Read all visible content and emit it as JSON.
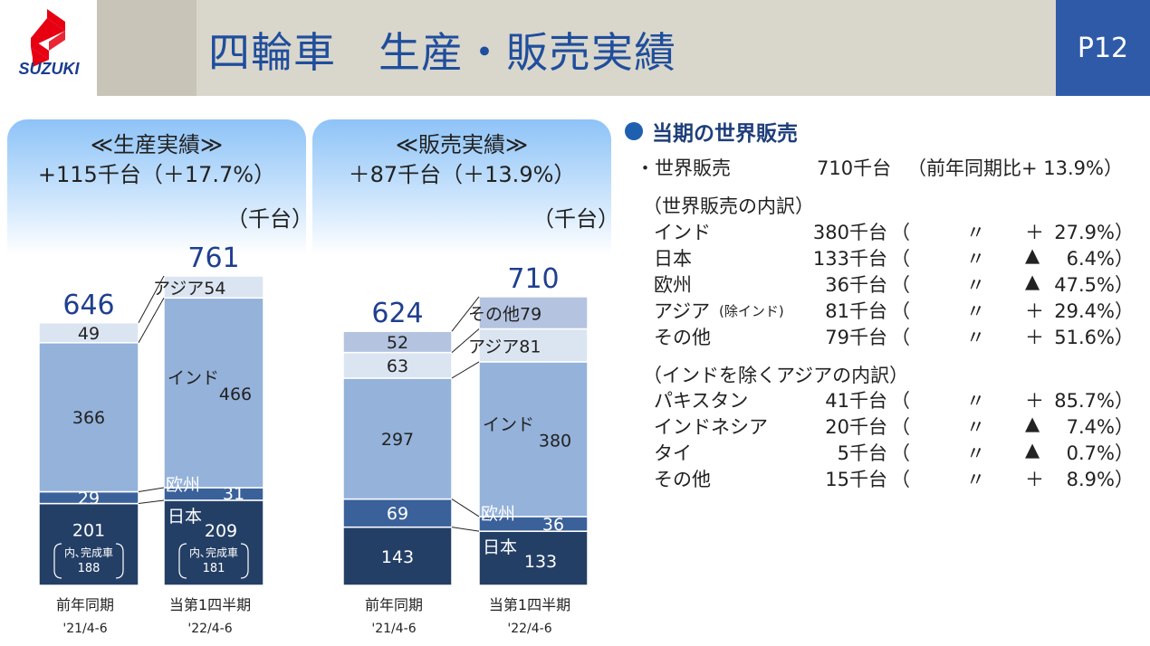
{
  "header": {
    "logo_text": "SUZUKI",
    "title": "四輪車　生産・販売実績",
    "page": "P12"
  },
  "colors": {
    "japan": "#243f65",
    "europe": "#3a619a",
    "india": "#94b2da",
    "asia": "#dbe5f2",
    "other": "#b4c3e0",
    "title_blue": "#1f4e9c",
    "total_blue": "#1f3f8f"
  },
  "production": {
    "heading": "≪生産実績≫",
    "change": "+115千台（＋17.7%）",
    "unit": "（千台）"
  },
  "sales": {
    "heading": "≪販売実績≫",
    "change": "＋87千台（＋13.9%）",
    "unit": "（千台）"
  },
  "chart_data": [
    {
      "type": "bar",
      "stacked": true,
      "title": "≪生産実績≫",
      "categories": [
        "前年同期",
        "当第1四半期"
      ],
      "category_sublabels": [
        "'21/4-6",
        "'22/4-6"
      ],
      "series": [
        {
          "name": "日本",
          "values": [
            201,
            209
          ]
        },
        {
          "name": "欧州",
          "values": [
            29,
            31
          ]
        },
        {
          "name": "インド",
          "values": [
            366,
            466
          ]
        },
        {
          "name": "アジア",
          "values": [
            49,
            54
          ]
        }
      ],
      "totals": [
        646,
        761
      ],
      "annotations": [
        {
          "label": "内､完成車",
          "values": [
            188,
            181
          ]
        }
      ],
      "ylabel": "（千台）"
    },
    {
      "type": "bar",
      "stacked": true,
      "title": "≪販売実績≫",
      "categories": [
        "前年同期",
        "当第1四半期"
      ],
      "category_sublabels": [
        "'21/4-6",
        "'22/4-6"
      ],
      "series": [
        {
          "name": "日本",
          "values": [
            143,
            133
          ]
        },
        {
          "name": "欧州",
          "values": [
            69,
            36
          ]
        },
        {
          "name": "インド",
          "values": [
            297,
            380
          ]
        },
        {
          "name": "アジア",
          "values": [
            63,
            81
          ]
        },
        {
          "name": "その他",
          "values": [
            52,
            79
          ]
        }
      ],
      "totals": [
        624,
        710
      ],
      "ylabel": "（千台）"
    }
  ],
  "world_sales": {
    "section_title": "当期の世界販売",
    "total": {
      "label": "・世界販売",
      "value": "710千台",
      "note": "（前年同期比+  13.9%）"
    },
    "breakdown_title": "（世界販売の内訳）",
    "breakdown": [
      {
        "name": "インド",
        "sub": "",
        "value": "380千台",
        "open": "（",
        "ditto": "〃",
        "mark": "＋",
        "pct": "27.9%）"
      },
      {
        "name": "日本",
        "sub": "",
        "value": "133千台",
        "open": "（",
        "ditto": "〃",
        "mark": "▲",
        "pct": "6.4%）"
      },
      {
        "name": "欧州",
        "sub": "",
        "value": "36千台",
        "open": "（",
        "ditto": "〃",
        "mark": "▲",
        "pct": "47.5%）"
      },
      {
        "name": "アジア",
        "sub": "(除インド)",
        "value": "81千台",
        "open": "（",
        "ditto": "〃",
        "mark": "＋",
        "pct": "29.4%）"
      },
      {
        "name": "その他",
        "sub": "",
        "value": "79千台",
        "open": "（",
        "ditto": "〃",
        "mark": "＋",
        "pct": "51.6%）"
      }
    ],
    "asia_title": "（インドを除くアジアの内訳）",
    "asia": [
      {
        "name": "パキスタン",
        "value": "41千台",
        "open": "（",
        "ditto": "〃",
        "mark": "＋",
        "pct": "85.7%）"
      },
      {
        "name": "インドネシア",
        "value": "20千台",
        "open": "（",
        "ditto": "〃",
        "mark": "▲",
        "pct": "7.4%）"
      },
      {
        "name": "タイ",
        "value": "5千台",
        "open": "（",
        "ditto": "〃",
        "mark": "▲",
        "pct": "0.7%）"
      },
      {
        "name": "その他",
        "value": "15千台",
        "open": "（",
        "ditto": "〃",
        "mark": "＋",
        "pct": "8.9%）"
      }
    ]
  }
}
